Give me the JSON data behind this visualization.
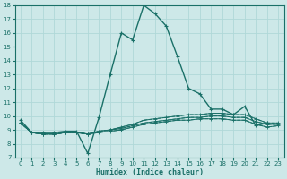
{
  "xlabel": "Humidex (Indice chaleur)",
  "xlim": [
    -0.5,
    23.5
  ],
  "ylim": [
    7,
    18
  ],
  "xticks": [
    0,
    1,
    2,
    3,
    4,
    5,
    6,
    7,
    8,
    9,
    10,
    11,
    12,
    13,
    14,
    15,
    16,
    17,
    18,
    19,
    20,
    21,
    22,
    23
  ],
  "yticks": [
    7,
    8,
    9,
    10,
    11,
    12,
    13,
    14,
    15,
    16,
    17,
    18
  ],
  "background_color": "#cde8e8",
  "grid_color": "#b0d8d8",
  "line_color": "#1a7068",
  "lines": [
    {
      "x": [
        0,
        1,
        2,
        3,
        4,
        5,
        6,
        7,
        8,
        9,
        10,
        11,
        12,
        13,
        14,
        15,
        16,
        17,
        18,
        19,
        20,
        21,
        22
      ],
      "y": [
        9.7,
        8.8,
        8.8,
        8.8,
        8.9,
        8.9,
        7.3,
        9.9,
        13.0,
        16.0,
        15.5,
        18.0,
        17.4,
        16.5,
        14.3,
        12.0,
        11.6,
        10.5,
        10.5,
        10.1,
        10.7,
        9.3,
        9.5
      ]
    },
    {
      "x": [
        0,
        1,
        2,
        3,
        4,
        5,
        6,
        7,
        8,
        9,
        10,
        11,
        12,
        13,
        14,
        15,
        16,
        17,
        18,
        19,
        20,
        21,
        22,
        23
      ],
      "y": [
        9.5,
        8.8,
        8.7,
        8.7,
        8.8,
        8.8,
        8.7,
        8.8,
        8.9,
        9.0,
        9.2,
        9.4,
        9.5,
        9.6,
        9.7,
        9.7,
        9.8,
        9.8,
        9.8,
        9.7,
        9.7,
        9.4,
        9.2,
        9.3
      ]
    },
    {
      "x": [
        0,
        1,
        2,
        3,
        4,
        5,
        6,
        7,
        8,
        9,
        10,
        11,
        12,
        13,
        14,
        15,
        16,
        17,
        18,
        19,
        20,
        21,
        22,
        23
      ],
      "y": [
        9.5,
        8.8,
        8.7,
        8.7,
        8.8,
        8.8,
        8.7,
        8.9,
        9.0,
        9.1,
        9.3,
        9.5,
        9.6,
        9.7,
        9.8,
        9.9,
        9.9,
        10.0,
        10.0,
        9.9,
        9.9,
        9.6,
        9.4,
        9.4
      ]
    },
    {
      "x": [
        0,
        1,
        2,
        3,
        4,
        5,
        6,
        7,
        8,
        9,
        10,
        11,
        12,
        13,
        14,
        15,
        16,
        17,
        18,
        19,
        20,
        21,
        22,
        23
      ],
      "y": [
        9.5,
        8.8,
        8.7,
        8.7,
        8.8,
        8.8,
        8.7,
        8.9,
        9.0,
        9.2,
        9.4,
        9.7,
        9.8,
        9.9,
        10.0,
        10.1,
        10.1,
        10.2,
        10.2,
        10.1,
        10.1,
        9.8,
        9.5,
        9.5
      ]
    }
  ]
}
